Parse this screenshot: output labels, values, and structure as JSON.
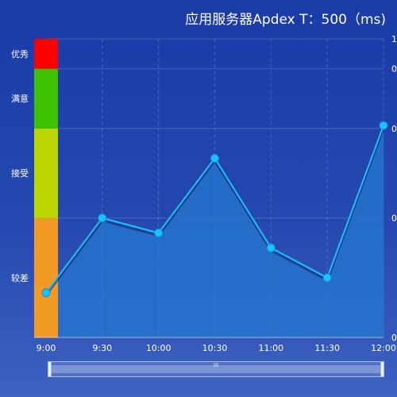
{
  "chart_data": {
    "type": "line",
    "title": "应用服务器Apdex T：500（ms)",
    "categories": [
      "9:00",
      "9:30",
      "10:00",
      "10:30",
      "11:00",
      "11:30",
      "12:00"
    ],
    "series": [
      {
        "values": [
          0.15,
          0.4,
          0.35,
          0.6,
          0.3,
          0.2,
          0.71
        ]
      }
    ],
    "ylim": [
      0,
      1
    ],
    "y_tick_labels": [
      "0",
      "0",
      "0",
      "0",
      "1"
    ],
    "bands": [
      {
        "label": "较差",
        "from": 0.0,
        "to": 0.4,
        "color": "#f29a26"
      },
      {
        "label": "接受",
        "from": 0.4,
        "to": 0.7,
        "color": "#bcd700"
      },
      {
        "label": "满意",
        "from": 0.7,
        "to": 0.9,
        "color": "#3fc100"
      },
      {
        "label": "优秀",
        "from": 0.9,
        "to": 1.0,
        "color": "#ff0000"
      }
    ],
    "line_color": "#1ec1ff",
    "area_color": "#2676cf",
    "grid": true
  },
  "zoom": {
    "grip_label": "III"
  }
}
